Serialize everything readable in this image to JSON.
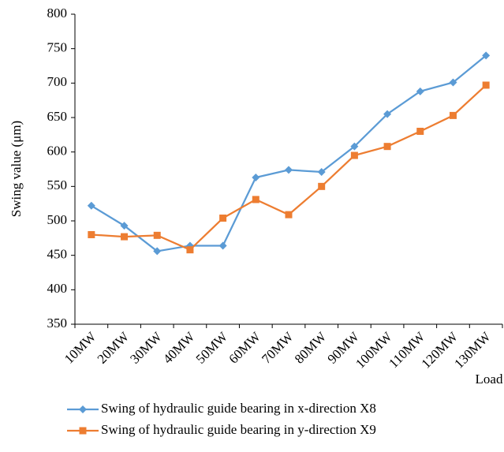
{
  "chart_data": {
    "type": "line",
    "y_label": "Swing value (μm)",
    "x_label": "Load",
    "categories": [
      "10MW",
      "20MW",
      "30MW",
      "40MW",
      "50MW",
      "60MW",
      "70MW",
      "80MW",
      "90MW",
      "100MW",
      "110MW",
      "120MW",
      "130MW"
    ],
    "series": [
      {
        "name": "Swing of hydraulic guide bearing in x-direction X8",
        "color": "#5b9bd5",
        "marker": "diamond",
        "values": [
          522,
          493,
          456,
          464,
          464,
          563,
          574,
          571,
          608,
          655,
          688,
          701,
          740
        ]
      },
      {
        "name": "Swing of hydraulic guide bearing in y-direction X9",
        "color": "#ed7d31",
        "marker": "square",
        "values": [
          480,
          477,
          479,
          458,
          504,
          531,
          509,
          550,
          595,
          608,
          630,
          653,
          697
        ]
      }
    ],
    "ylim": [
      350,
      800
    ],
    "yticks": [
      350,
      400,
      450,
      500,
      550,
      600,
      650,
      700,
      750,
      800
    ],
    "grid": false,
    "legend": "bottom"
  }
}
